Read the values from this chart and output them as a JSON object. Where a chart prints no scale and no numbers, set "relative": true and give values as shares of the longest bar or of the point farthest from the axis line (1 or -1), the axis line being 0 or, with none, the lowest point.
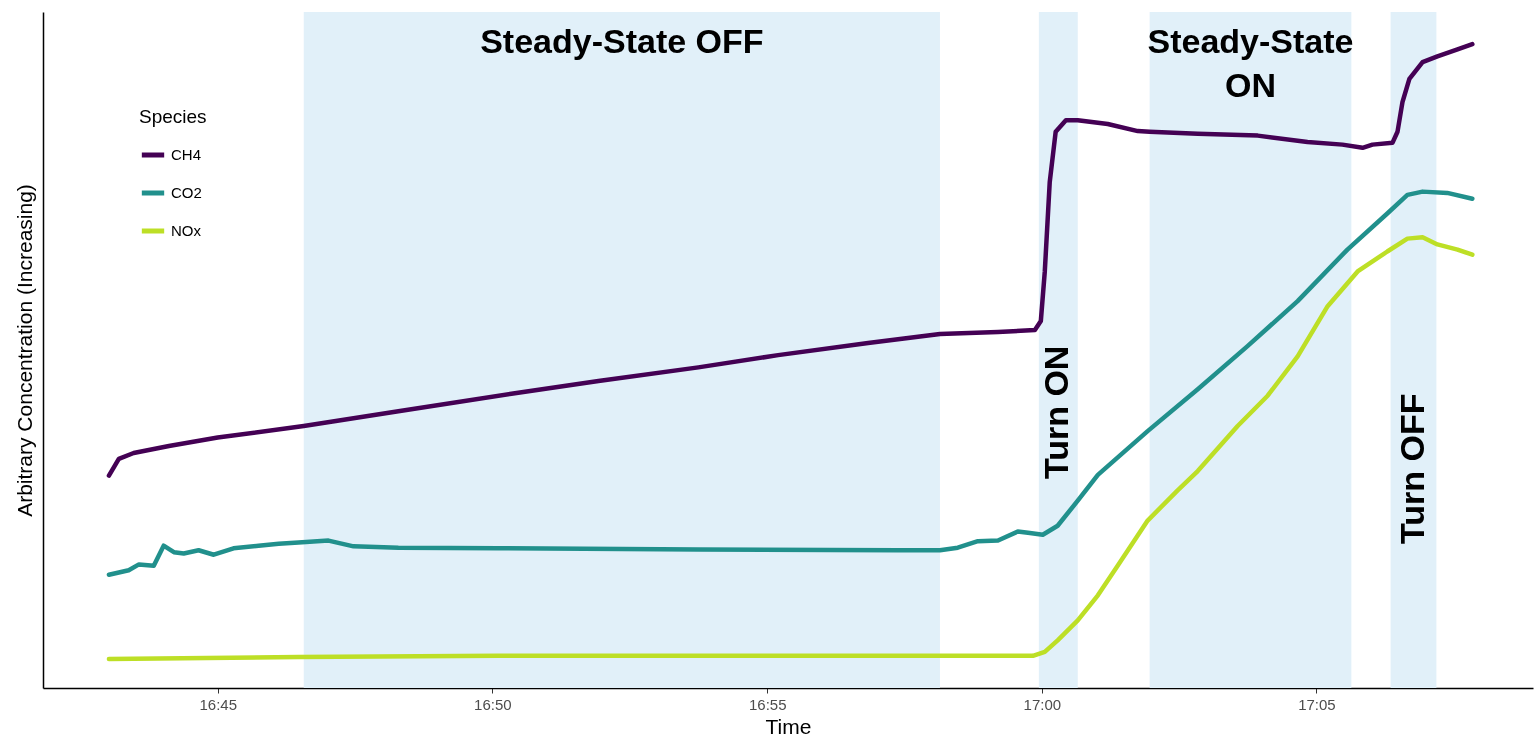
{
  "chart_data": {
    "type": "line",
    "xlabel": "Time",
    "ylabel": "Arbitrary Concentration (Increasing)",
    "legend_title": "Species",
    "legend": "top left",
    "relative": true,
    "xlim": [
      16.697,
      17.149
    ],
    "xticks": [
      {
        "value": 16.75,
        "label": "16:45"
      },
      {
        "value": 16.8333,
        "label": "16:50"
      },
      {
        "value": 16.9167,
        "label": "16:55"
      },
      {
        "value": 17,
        "label": "17:00"
      },
      {
        "value": 17.0833,
        "label": "17:05"
      }
    ],
    "bands": [
      {
        "axis": "x",
        "from": 16.7761,
        "to": 16.9691,
        "label": "Steady-State OFF",
        "color": "#e1f0f9"
      },
      {
        "axis": "x",
        "from": 16.9991,
        "to": 17.0109,
        "label": "Turn ON",
        "color": "#e1f0f9"
      },
      {
        "axis": "x",
        "from": 17.0327,
        "to": 17.0939,
        "label": "Steady-State ON",
        "color": "#e1f0f9"
      },
      {
        "axis": "x",
        "from": 17.1058,
        "to": 17.1197,
        "label": "Turn OFF",
        "color": "#e1f0f9"
      }
    ],
    "series": [
      {
        "name": "CH4",
        "color": "#440154",
        "x": [
          16.717,
          16.72,
          16.7245,
          16.7352,
          16.75,
          16.7761,
          16.8048,
          16.8391,
          16.8655,
          16.8958,
          16.92,
          16.9473,
          16.9691,
          16.9867,
          16.9979,
          16.9997,
          17.0009,
          17.0024,
          17.0042,
          17.0073,
          17.0109,
          17.02,
          17.0291,
          17.0327,
          17.0473,
          17.0655,
          17.0806,
          17.0912,
          17.0973,
          17.1003,
          17.1064,
          17.1079,
          17.1094,
          17.1115,
          17.1155,
          17.12,
          17.1261,
          17.1306
        ],
        "values": [
          0.33,
          0.356,
          0.365,
          0.376,
          0.389,
          0.407,
          0.43,
          0.457,
          0.477,
          0.498,
          0.517,
          0.536,
          0.55,
          0.553,
          0.556,
          0.57,
          0.647,
          0.786,
          0.864,
          0.882,
          0.882,
          0.876,
          0.865,
          0.864,
          0.861,
          0.858,
          0.848,
          0.844,
          0.839,
          0.844,
          0.847,
          0.864,
          0.91,
          0.946,
          0.972,
          0.981,
          0.992,
          1
        ]
      },
      {
        "name": "CO2",
        "color": "#21908c",
        "x": [
          16.717,
          16.723,
          16.7261,
          16.7306,
          16.7336,
          16.7367,
          16.7397,
          16.7442,
          16.7488,
          16.7548,
          16.7624,
          16.7685,
          16.7745,
          16.7836,
          16.7912,
          16.8048,
          16.8352,
          16.8958,
          16.9564,
          16.9691,
          16.9745,
          16.9806,
          16.9867,
          16.9927,
          16.9958,
          17.0003,
          17.0048,
          17.0109,
          17.017,
          17.0321,
          17.0473,
          17.0624,
          17.0776,
          17.0927,
          17.1048,
          17.1109,
          17.1155,
          17.123,
          17.1306
        ],
        "values": [
          0.176,
          0.183,
          0.192,
          0.19,
          0.221,
          0.211,
          0.209,
          0.214,
          0.207,
          0.217,
          0.221,
          0.224,
          0.226,
          0.229,
          0.22,
          0.218,
          0.217,
          0.215,
          0.214,
          0.214,
          0.218,
          0.228,
          0.229,
          0.243,
          0.241,
          0.238,
          0.252,
          0.291,
          0.331,
          0.399,
          0.464,
          0.531,
          0.601,
          0.681,
          0.737,
          0.766,
          0.771,
          0.769,
          0.76
        ]
      },
      {
        "name": "NOx",
        "color": "#bddf26",
        "x": [
          16.717,
          16.7745,
          16.8352,
          16.8958,
          16.9564,
          16.9973,
          17.0009,
          17.0048,
          17.0109,
          17.017,
          17.023,
          17.0321,
          17.0412,
          17.0473,
          17.0594,
          17.0685,
          17.0776,
          17.0867,
          17.0958,
          17.1048,
          17.1109,
          17.1155,
          17.12,
          17.1261,
          17.1306
        ],
        "values": [
          0.045,
          0.048,
          0.05,
          0.05,
          0.05,
          0.05,
          0.056,
          0.074,
          0.105,
          0.144,
          0.19,
          0.26,
          0.307,
          0.337,
          0.407,
          0.454,
          0.515,
          0.593,
          0.647,
          0.678,
          0.698,
          0.7,
          0.689,
          0.681,
          0.673
        ]
      }
    ]
  }
}
